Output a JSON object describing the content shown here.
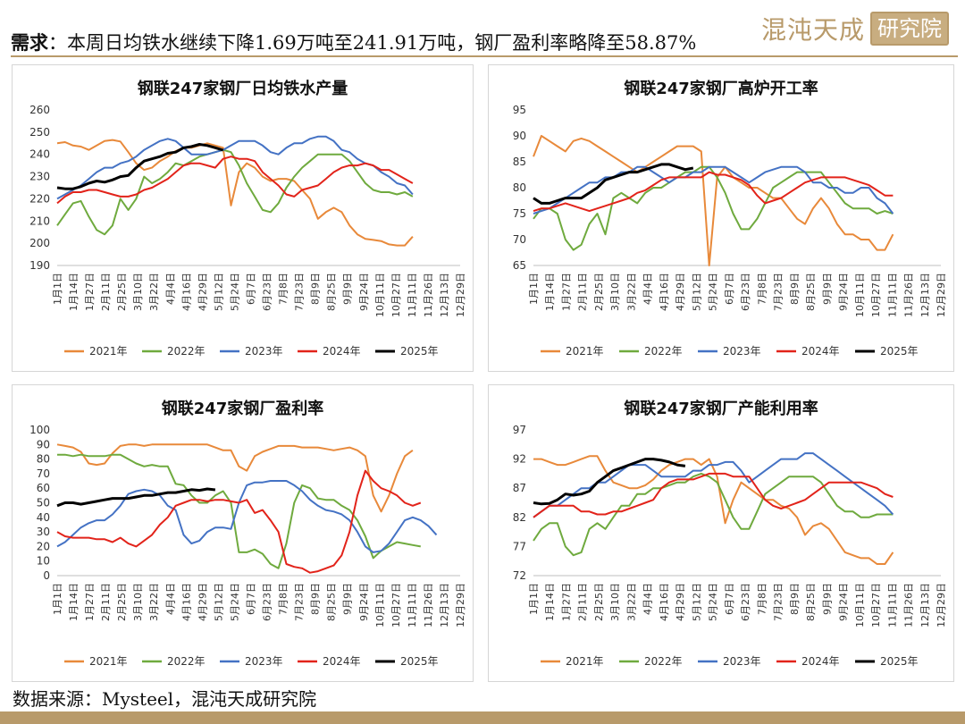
{
  "header": {
    "label": "需求",
    "text": "：本周日均铁水继续下降1.69万吨至241.91万吨，钢厂盈利率略降至58.87%"
  },
  "logo": {
    "text": "混沌天成",
    "box_text": "研究院",
    "color": "#b89a6a"
  },
  "footer": {
    "source": "数据来源：Mysteel，混沌天成研究院"
  },
  "legend_years": [
    "2021年",
    "2022年",
    "2023年",
    "2024年",
    "2025年"
  ],
  "series_colors": {
    "2021年": "#e8893a",
    "2022年": "#6faa3e",
    "2023年": "#4472c4",
    "2024年": "#e2231a",
    "2025年": "#000000"
  },
  "x_ticks": [
    "1月1日",
    "1月14日",
    "1月27日",
    "2月11日",
    "2月25日",
    "3月10日",
    "3月22日",
    "4月4日",
    "4月16日",
    "4月29日",
    "5月12日",
    "5月24日",
    "6月7日",
    "6月23日",
    "7月8日",
    "7月23日",
    "8月9日",
    "8月25日",
    "9月9日",
    "9月24日",
    "10月11日",
    "10月27日",
    "11月11日",
    "11月26日",
    "12月13日",
    "12月29日"
  ],
  "chart_data": [
    {
      "type": "line",
      "title": "钢联247家钢厂日均铁水产量",
      "ylim": [
        190,
        260
      ],
      "y_ticks": [
        190,
        200,
        210,
        220,
        230,
        240,
        250,
        260
      ],
      "series": [
        {
          "name": "2021年",
          "values": [
            245,
            245.5,
            244,
            243.5,
            242,
            244,
            246,
            246.5,
            245.8,
            241,
            236,
            233,
            234,
            237,
            239,
            241.5,
            243,
            243,
            244,
            245,
            244,
            243,
            217,
            232,
            236,
            234,
            230,
            228,
            229,
            229,
            228,
            224,
            220,
            211,
            214,
            216,
            214,
            208,
            204,
            202,
            201.5,
            201,
            199.5,
            199,
            199,
            203
          ]
        },
        {
          "name": "2022年",
          "values": [
            208,
            213,
            218,
            219,
            212,
            206,
            204,
            208,
            220,
            215,
            220,
            230,
            227,
            229,
            232,
            236,
            235,
            237,
            239,
            240,
            241,
            242,
            241,
            235,
            227,
            221,
            215,
            214,
            218,
            225,
            230,
            234,
            237,
            240,
            240,
            240,
            240,
            237,
            232,
            227,
            224,
            223,
            223,
            222,
            223,
            221
          ]
        },
        {
          "name": "2023年",
          "values": [
            220,
            222,
            224,
            226,
            229,
            232,
            234,
            234,
            236,
            237,
            239,
            242,
            244,
            246,
            247,
            246,
            243,
            240,
            240,
            240,
            241,
            242,
            244,
            246,
            246,
            246,
            244,
            241,
            240,
            243,
            245,
            245,
            247,
            248,
            248,
            246,
            242,
            241,
            238,
            236,
            235,
            232,
            230,
            227,
            226,
            222
          ]
        },
        {
          "name": "2024年",
          "values": [
            218,
            221,
            223,
            223,
            224,
            224,
            223,
            222,
            221,
            221,
            222,
            224,
            225,
            227,
            229,
            232,
            235,
            236,
            236,
            235,
            234,
            238,
            239,
            238,
            238,
            237,
            232,
            229,
            226,
            222,
            221,
            224,
            225,
            226,
            229,
            232,
            234,
            235,
            235,
            236,
            235,
            233,
            233,
            231,
            229,
            227
          ]
        },
        {
          "name": "2025年",
          "values": [
            225,
            224.5,
            224.5,
            225.5,
            227,
            228,
            227.5,
            228.5,
            230,
            230.5,
            234,
            237,
            238,
            239,
            240.5,
            241,
            243,
            243.5,
            244.5,
            244,
            243,
            241.9
          ]
        }
      ]
    },
    {
      "type": "line",
      "title": "钢联247家钢厂高炉开工率",
      "ylim": [
        65,
        95
      ],
      "y_ticks": [
        65,
        70,
        75,
        80,
        85,
        90,
        95
      ],
      "series": [
        {
          "name": "2021年",
          "values": [
            86,
            90,
            89,
            88,
            87,
            89,
            89.5,
            89,
            88,
            87,
            86,
            85,
            84,
            83,
            84,
            85,
            86,
            87,
            88,
            88,
            88,
            87,
            65,
            82,
            84,
            82,
            81,
            80,
            80,
            79,
            78,
            78,
            76,
            74,
            73,
            76,
            78,
            76,
            73,
            71,
            71,
            70,
            70,
            68,
            68,
            71
          ]
        },
        {
          "name": "2022年",
          "values": [
            74,
            76,
            76,
            75,
            70,
            68,
            69,
            73,
            75,
            71,
            78,
            79,
            78,
            77,
            79,
            80,
            80,
            81,
            82,
            83,
            83,
            84,
            84,
            82,
            79,
            75,
            72,
            72,
            74,
            77,
            80,
            81,
            82,
            83,
            83,
            83,
            83,
            81,
            79,
            77,
            76,
            76,
            76,
            75,
            75.5,
            75
          ]
        },
        {
          "name": "2023年",
          "values": [
            75,
            75.5,
            76,
            77,
            78,
            79,
            80,
            81,
            81,
            82,
            82,
            83,
            83,
            84,
            84,
            83,
            82,
            81,
            82,
            82,
            83,
            83,
            84,
            84,
            84,
            83,
            82,
            81,
            82,
            83,
            83.5,
            84,
            84,
            84,
            83,
            81,
            81,
            80,
            80,
            79,
            79,
            80,
            80,
            78,
            77,
            75
          ]
        },
        {
          "name": "2024年",
          "values": [
            75.5,
            76,
            76,
            76.5,
            77,
            76.5,
            76,
            75.5,
            76,
            76.5,
            77,
            77.5,
            78,
            79,
            79.5,
            80.5,
            81.5,
            82,
            82,
            82,
            82,
            82,
            83,
            82.5,
            82.5,
            82,
            81.5,
            80.5,
            78.5,
            77,
            77.5,
            78,
            79,
            80,
            81,
            81.5,
            82,
            82,
            82,
            82,
            81.5,
            81,
            80.5,
            79.5,
            78.5,
            78.5
          ]
        },
        {
          "name": "2025年",
          "values": [
            78,
            77,
            77,
            77.5,
            78,
            78,
            78,
            79,
            80,
            81.5,
            82,
            82.5,
            83,
            83,
            83.5,
            84,
            84.5,
            84.5,
            84,
            83.5,
            83.8
          ]
        }
      ]
    },
    {
      "type": "line",
      "title": "钢联247家钢厂盈利率",
      "ylim": [
        0,
        100
      ],
      "y_ticks": [
        0,
        10,
        20,
        30,
        40,
        50,
        60,
        70,
        80,
        90,
        100
      ],
      "series": [
        {
          "name": "2021年",
          "values": [
            90,
            89,
            88,
            85,
            77,
            76,
            77,
            84,
            89,
            90,
            90,
            89,
            90,
            90,
            90,
            90,
            90,
            90,
            90,
            90,
            88,
            86,
            86,
            75,
            72,
            82,
            85,
            87,
            89,
            89,
            89,
            88,
            88,
            88,
            87,
            86,
            87,
            88,
            86,
            82,
            55,
            44,
            55,
            70,
            82,
            86
          ]
        },
        {
          "name": "2022年",
          "values": [
            83,
            83,
            82,
            83,
            82,
            82,
            82,
            83,
            83,
            80,
            77,
            75,
            76,
            75,
            75,
            63,
            62,
            55,
            50,
            50,
            55,
            58,
            50,
            16,
            16,
            18,
            15,
            8,
            5,
            22,
            50,
            62,
            60,
            53,
            52,
            52,
            48,
            45,
            38,
            27,
            12,
            17,
            20,
            23,
            22,
            21,
            20
          ]
        },
        {
          "name": "2023年",
          "values": [
            20,
            23,
            28,
            33,
            36,
            38,
            38,
            42,
            48,
            56,
            58,
            59,
            58,
            55,
            48,
            45,
            28,
            22,
            24,
            30,
            33,
            33,
            32,
            50,
            62,
            64,
            64,
            65,
            65,
            65,
            62,
            58,
            52,
            48,
            45,
            44,
            42,
            38,
            30,
            20,
            16,
            17,
            22,
            30,
            38,
            40,
            38,
            34,
            28
          ]
        },
        {
          "name": "2024年",
          "values": [
            30,
            27,
            26,
            26,
            26,
            25,
            25,
            23,
            26,
            22,
            20,
            24,
            28,
            35,
            40,
            48,
            50,
            52,
            52,
            51,
            52,
            52,
            51,
            50,
            52,
            43,
            45,
            38,
            30,
            8,
            6,
            5,
            2,
            3,
            5,
            7,
            14,
            30,
            55,
            72,
            65,
            60,
            58,
            55,
            50,
            48,
            50
          ]
        },
        {
          "name": "2025年",
          "values": [
            48,
            50,
            50,
            49,
            50,
            51,
            52,
            53,
            53,
            53,
            54,
            55,
            55,
            56,
            57,
            57,
            58,
            59,
            58.5,
            59.5,
            58.9
          ]
        }
      ]
    },
    {
      "type": "line",
      "title": "钢联247家钢厂产能利用率",
      "ylim": [
        72,
        97
      ],
      "y_ticks": [
        72,
        77,
        82,
        87,
        92,
        97
      ],
      "series": [
        {
          "name": "2021年",
          "values": [
            92,
            92,
            91.5,
            91,
            91,
            91.5,
            92,
            92.5,
            92.5,
            90,
            88,
            87.5,
            87,
            87,
            87.5,
            88.5,
            90,
            91,
            91.5,
            92,
            92,
            91,
            92,
            89,
            81,
            85,
            88,
            87,
            86,
            85,
            85,
            84,
            83.5,
            82,
            79,
            80.5,
            81,
            80,
            78,
            76,
            75.5,
            75,
            75,
            74,
            74,
            76
          ]
        },
        {
          "name": "2022年",
          "values": [
            78,
            80,
            81,
            81,
            77,
            75.5,
            76,
            80,
            81,
            80,
            82,
            84,
            84,
            86,
            86,
            87,
            87,
            87.5,
            88,
            88,
            89,
            89.5,
            89,
            88,
            85,
            82,
            80,
            80,
            83,
            86,
            87,
            88,
            89,
            89,
            89,
            89,
            88,
            86,
            84,
            83,
            83,
            82,
            82,
            82.5,
            82.5,
            82.5
          ]
        },
        {
          "name": "2023年",
          "values": [
            82,
            83,
            84,
            84,
            85,
            86,
            87,
            87,
            88,
            88,
            89,
            90,
            91,
            91,
            91,
            90,
            89,
            89,
            89,
            89,
            90,
            90,
            91,
            91,
            91.5,
            91.5,
            90,
            88,
            89,
            90,
            91,
            92,
            92,
            92,
            93,
            93,
            92,
            91,
            90,
            89,
            88,
            87,
            86,
            85,
            84,
            82.5
          ]
        },
        {
          "name": "2024年",
          "values": [
            82,
            83,
            84,
            84,
            84,
            84,
            83,
            83,
            82.5,
            82.5,
            83,
            83,
            83.5,
            84,
            84.5,
            85,
            87,
            88,
            88.5,
            88.5,
            88.5,
            89,
            89.5,
            89.5,
            89.5,
            89,
            89,
            89,
            87,
            85,
            84,
            83.5,
            84,
            84.5,
            85,
            86,
            87,
            88,
            88,
            88,
            88,
            88,
            87.5,
            87,
            86,
            85.5
          ]
        },
        {
          "name": "2025年",
          "values": [
            84.5,
            84.3,
            84.4,
            85,
            86,
            85.8,
            86,
            86.5,
            88,
            89,
            90,
            90.5,
            91,
            91.5,
            92,
            92,
            91.8,
            91.5,
            91,
            90.8
          ]
        }
      ]
    }
  ]
}
